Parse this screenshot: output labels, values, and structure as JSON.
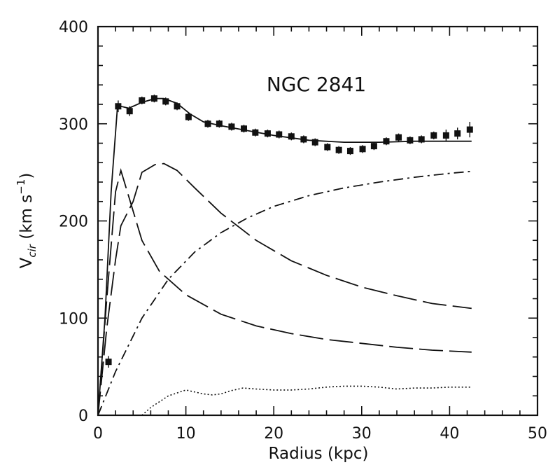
{
  "chart_data": {
    "type": "line",
    "title": "NGC 2841",
    "xlabel": "Radius  (kpc)",
    "ylabel": {
      "main": "V",
      "sub": "cir",
      "unit": "  (km  s",
      "sup": "−1",
      "close": ")"
    },
    "xlim": [
      0,
      50
    ],
    "ylim": [
      0,
      400
    ],
    "x_ticks": [
      0,
      10,
      20,
      30,
      40,
      50
    ],
    "y_ticks": [
      0,
      100,
      200,
      300,
      400
    ],
    "grid": false,
    "observed": {
      "style": "squares-with-errorbars",
      "points": [
        [
          1.2,
          55,
          6
        ],
        [
          2.3,
          318,
          6
        ],
        [
          3.6,
          313,
          5
        ],
        [
          5.0,
          324,
          4
        ],
        [
          6.4,
          326,
          4
        ],
        [
          7.7,
          323,
          4
        ],
        [
          9.0,
          318,
          4
        ],
        [
          10.3,
          307,
          4
        ],
        [
          12.5,
          300,
          4
        ],
        [
          13.8,
          300,
          4
        ],
        [
          15.2,
          297,
          4
        ],
        [
          16.6,
          295,
          4
        ],
        [
          17.9,
          291,
          4
        ],
        [
          19.3,
          290,
          4
        ],
        [
          20.6,
          289,
          4
        ],
        [
          22.0,
          287,
          4
        ],
        [
          23.4,
          284,
          4
        ],
        [
          24.7,
          281,
          4
        ],
        [
          26.1,
          276,
          4
        ],
        [
          27.4,
          273,
          4
        ],
        [
          28.7,
          272,
          4
        ],
        [
          30.1,
          274,
          4
        ],
        [
          31.4,
          277,
          4
        ],
        [
          32.8,
          282,
          4
        ],
        [
          34.2,
          286,
          4
        ],
        [
          35.5,
          283,
          4
        ],
        [
          36.8,
          284,
          4
        ],
        [
          38.2,
          288,
          4
        ],
        [
          39.6,
          288,
          6
        ],
        [
          40.9,
          290,
          6
        ],
        [
          42.3,
          294,
          8
        ]
      ]
    },
    "series": [
      {
        "style": "solid",
        "x": [
          0,
          0.8,
          1.5,
          2.2,
          2.6,
          3.5,
          5,
          6.5,
          7.5,
          9,
          10.5,
          12,
          14,
          17,
          20,
          24,
          28,
          32,
          36,
          40,
          42.5
        ],
        "y": [
          0,
          100,
          230,
          315,
          318,
          316,
          322,
          326,
          326,
          321,
          310,
          302,
          298,
          293,
          288,
          283,
          281,
          281,
          282,
          282,
          282
        ]
      },
      {
        "style": "long-dash",
        "x": [
          0,
          1,
          2,
          2.6,
          3.5,
          5,
          7,
          10,
          14,
          18,
          22,
          26,
          30,
          34,
          38,
          42.5
        ],
        "y": [
          0,
          120,
          230,
          252,
          225,
          180,
          148,
          124,
          104,
          92,
          84,
          78,
          74,
          70,
          67,
          65
        ]
      },
      {
        "style": "long-dash",
        "x": [
          0,
          1,
          2,
          2.6,
          4,
          5,
          6.5,
          7.5,
          9,
          11,
          14,
          18,
          22,
          26,
          30,
          34,
          38,
          42.5
        ],
        "y": [
          0,
          90,
          160,
          195,
          220,
          250,
          258,
          259,
          252,
          234,
          208,
          180,
          159,
          144,
          132,
          123,
          115,
          110
        ]
      },
      {
        "style": "dash-dot",
        "x": [
          0,
          2,
          5,
          8,
          11,
          14,
          17,
          20,
          24,
          28,
          32,
          36,
          40,
          42.5
        ],
        "y": [
          0,
          45,
          100,
          140,
          168,
          188,
          203,
          215,
          226,
          234,
          240,
          245,
          249,
          251
        ]
      },
      {
        "style": "dotted",
        "x": [
          5,
          6,
          8,
          10,
          12,
          13,
          14,
          15,
          16.5,
          18,
          20,
          22,
          24,
          26,
          28,
          30,
          32,
          34,
          36,
          38,
          40,
          42.5
        ],
        "y": [
          0,
          8,
          20,
          26,
          22,
          21,
          22,
          25,
          28,
          27,
          26,
          26,
          27,
          29,
          30,
          30,
          29,
          27,
          28,
          28,
          29,
          29
        ]
      }
    ]
  }
}
